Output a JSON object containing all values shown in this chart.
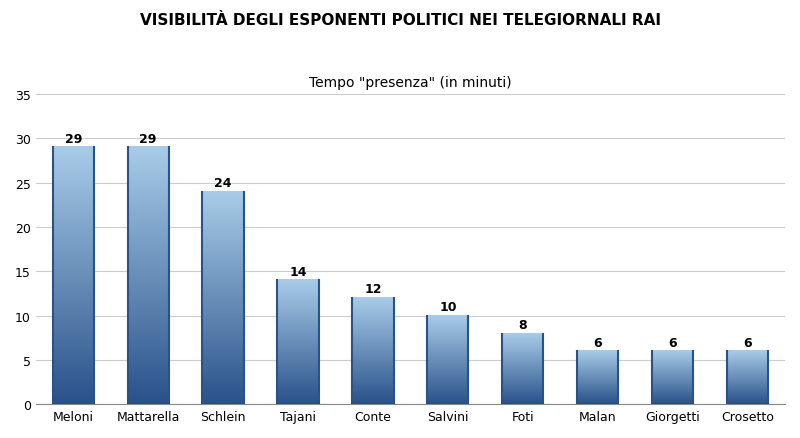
{
  "categories": [
    "Meloni",
    "Mattarella",
    "Schlein",
    "Tajani",
    "Conte",
    "Salvini",
    "Foti",
    "Malan",
    "Giorgetti",
    "Crosetto"
  ],
  "values": [
    29,
    29,
    24,
    14,
    12,
    10,
    8,
    6,
    6,
    6
  ],
  "title_line1": "VISIBILITÀ DEGLI ESPONENTI POLITICI NEI TELEGIORNALI RAI",
  "title_line2": "Tempo \"presenza\" (in minuti)",
  "ylim": [
    0,
    35
  ],
  "yticks": [
    0,
    5,
    10,
    15,
    20,
    25,
    30,
    35
  ],
  "bar_color_top": "#a8cce8",
  "bar_color_bottom": "#2a528a",
  "background_color": "#ffffff",
  "grid_color": "#cccccc",
  "label_fontsize": 9,
  "title_fontsize1": 11,
  "title_fontsize2": 10,
  "value_fontsize": 9
}
